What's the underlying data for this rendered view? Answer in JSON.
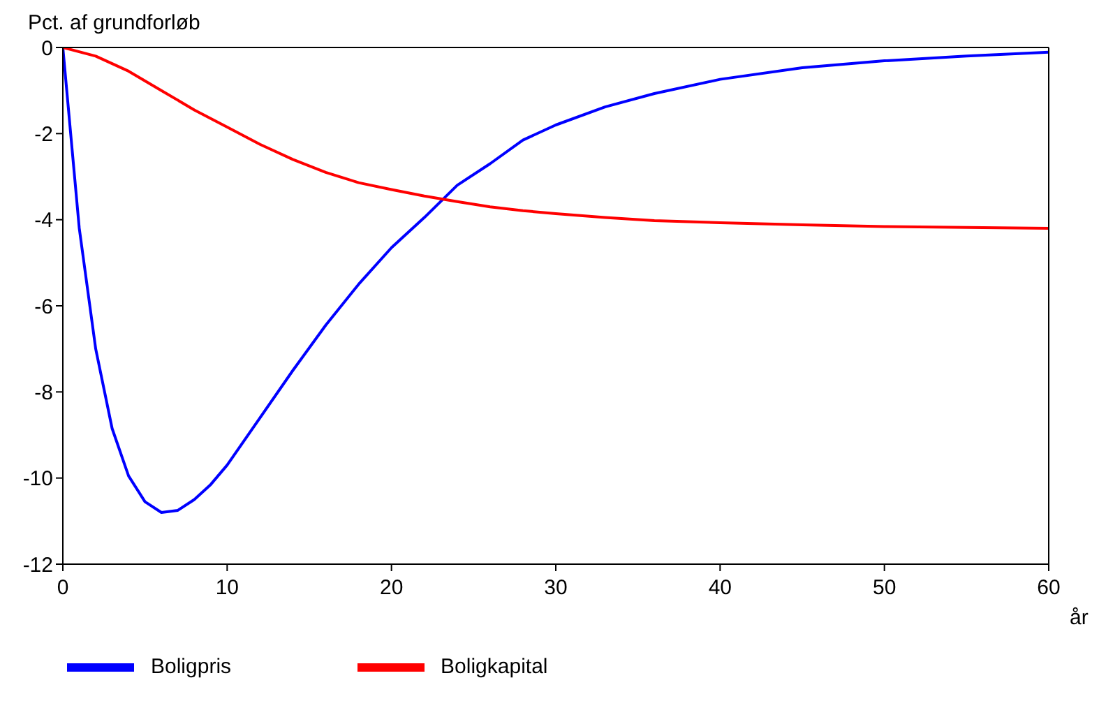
{
  "chart_data": {
    "type": "line",
    "ylabel": "Pct. af grundforløb",
    "xlabel": "år",
    "xlim": [
      0,
      60
    ],
    "xticks": [
      0,
      10,
      20,
      30,
      40,
      50,
      60
    ],
    "ylim": [
      -12,
      0
    ],
    "yticks": [
      -12,
      -10,
      -8,
      -6,
      -4,
      -2,
      0
    ],
    "legend": "bottom",
    "marker": "none",
    "line_style": "solid",
    "series": [
      {
        "name": "Boligpris",
        "color": "#0000ff",
        "x": [
          0,
          1,
          2,
          3,
          4,
          5,
          6,
          7,
          8,
          9,
          10,
          12,
          14,
          16,
          18,
          20,
          22,
          24,
          26,
          28,
          30,
          33,
          36,
          40,
          45,
          50,
          55,
          60
        ],
        "values": [
          0,
          -4.2,
          -7.0,
          -8.85,
          -9.95,
          -10.55,
          -10.8,
          -10.75,
          -10.5,
          -10.15,
          -9.7,
          -8.6,
          -7.5,
          -6.45,
          -5.5,
          -4.65,
          -3.95,
          -3.2,
          -2.7,
          -2.15,
          -1.8,
          -1.38,
          -1.07,
          -0.74,
          -0.47,
          -0.31,
          -0.2,
          -0.11
        ]
      },
      {
        "name": "Boligkapital",
        "color": "#ff0000",
        "x": [
          0,
          2,
          4,
          6,
          8,
          10,
          12,
          14,
          16,
          18,
          20,
          22,
          24,
          26,
          28,
          30,
          33,
          36,
          40,
          45,
          50,
          55,
          60
        ],
        "values": [
          0,
          -0.2,
          -0.55,
          -1.0,
          -1.45,
          -1.85,
          -2.25,
          -2.6,
          -2.9,
          -3.14,
          -3.3,
          -3.45,
          -3.58,
          -3.7,
          -3.79,
          -3.86,
          -3.95,
          -4.02,
          -4.07,
          -4.12,
          -4.16,
          -4.18,
          -4.2
        ]
      }
    ]
  }
}
